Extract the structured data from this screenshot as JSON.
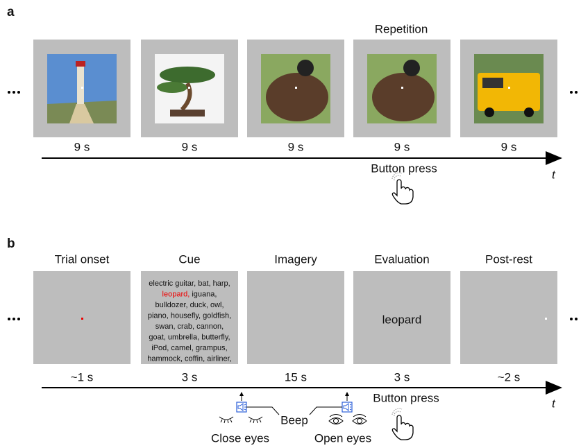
{
  "panel_a": {
    "label": "a",
    "repetition_label": "Repetition",
    "durations": [
      "9 s",
      "9 s",
      "9 s",
      "9 s",
      "9 s"
    ],
    "button_label": "Button press",
    "axis_label": "t"
  },
  "panel_b": {
    "label": "b",
    "phases": [
      {
        "title": "Trial onset",
        "duration": "~1 s"
      },
      {
        "title": "Cue",
        "duration": "3 s"
      },
      {
        "title": "Imagery",
        "duration": "15 s"
      },
      {
        "title": "Evaluation",
        "duration": "3 s"
      },
      {
        "title": "Post-rest",
        "duration": "~2 s"
      }
    ],
    "cue_lines": [
      "electric guitar, bat, harp,",
      "iguana,",
      "bulldozer, duck, owl,",
      "piano, housefly, goldfish,",
      "swan, crab, cannon,",
      "goat, umbrella, butterfly,",
      "iPod, camel, grampus,",
      "hammock, coffin, airliner,"
    ],
    "cue_highlight": "leopard,",
    "evaluation_word": "leopard",
    "beep_label": "Beep",
    "close_eyes_label": "Close eyes",
    "open_eyes_label": "Open eyes",
    "button_label": "Button press",
    "axis_label": "t"
  }
}
